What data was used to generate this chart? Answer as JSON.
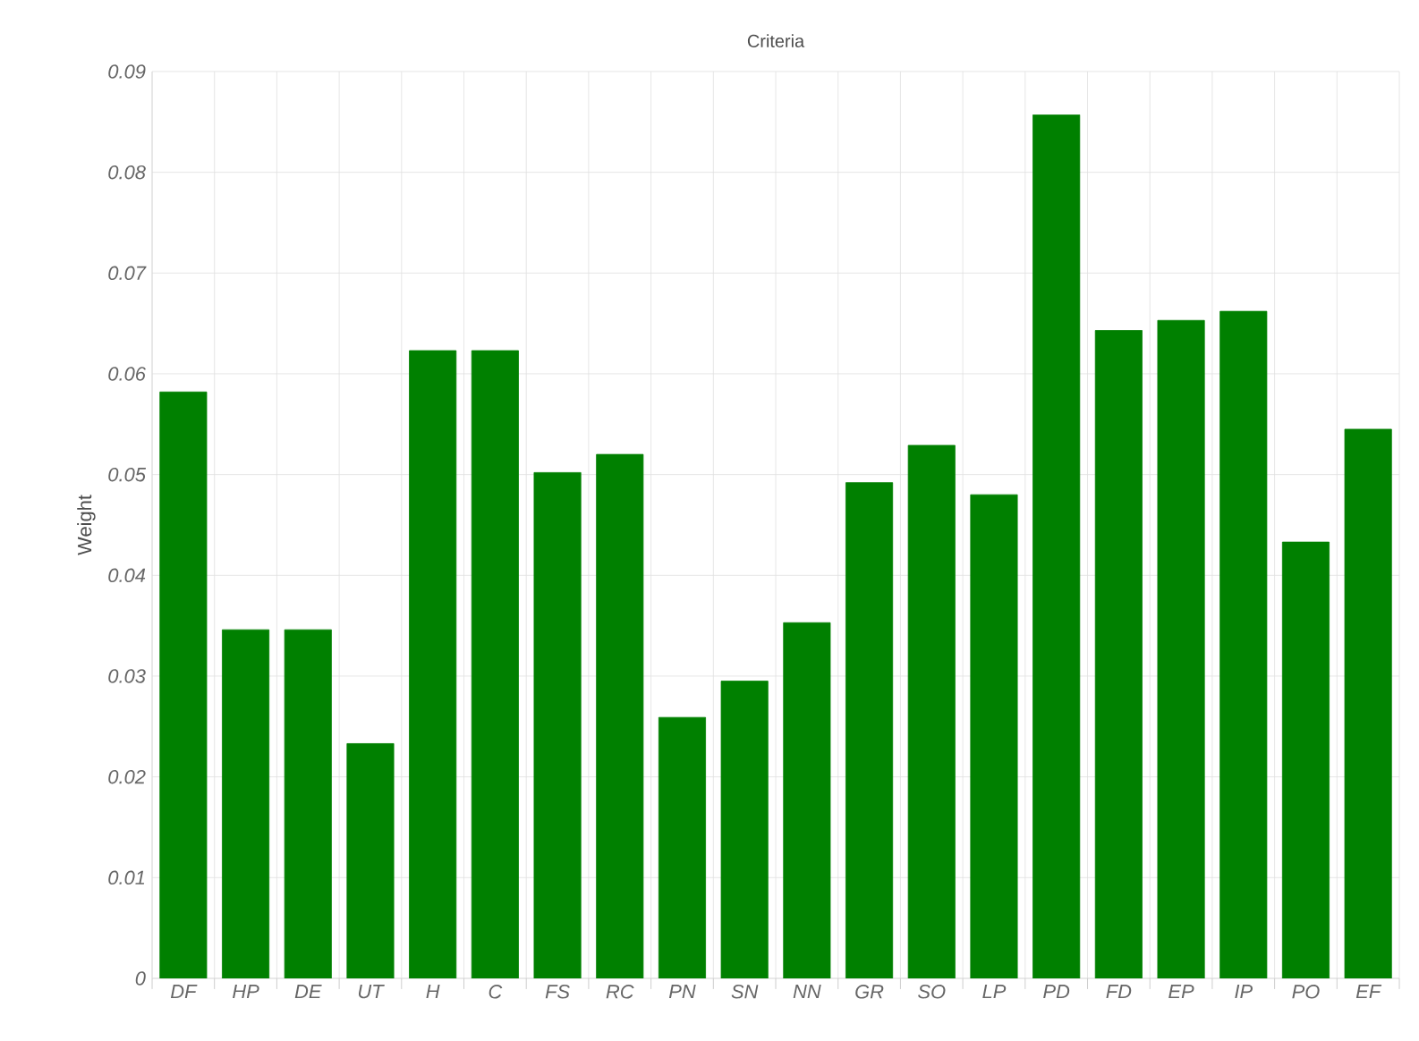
{
  "chart_data": {
    "type": "bar",
    "title": "Criteria",
    "ylabel": "Weight",
    "categories": [
      "DF",
      "HP",
      "DE",
      "UT",
      "H",
      "C",
      "FS",
      "RC",
      "PN",
      "SN",
      "NN",
      "GR",
      "SO",
      "LP",
      "PD",
      "FD",
      "EP",
      "IP",
      "PO",
      "EF"
    ],
    "values": [
      0.0582,
      0.0346,
      0.0346,
      0.0233,
      0.0623,
      0.0623,
      0.0502,
      0.052,
      0.0259,
      0.0295,
      0.0353,
      0.0492,
      0.0529,
      0.048,
      0.0857,
      0.0643,
      0.0653,
      0.0662,
      0.0433,
      0.0545
    ],
    "color": "#008000",
    "ylim": [
      0,
      0.09
    ],
    "yticks": [
      0,
      0.01,
      0.02,
      0.03,
      0.04,
      0.05,
      0.06,
      0.07,
      0.08,
      0.09
    ],
    "grid": true
  }
}
